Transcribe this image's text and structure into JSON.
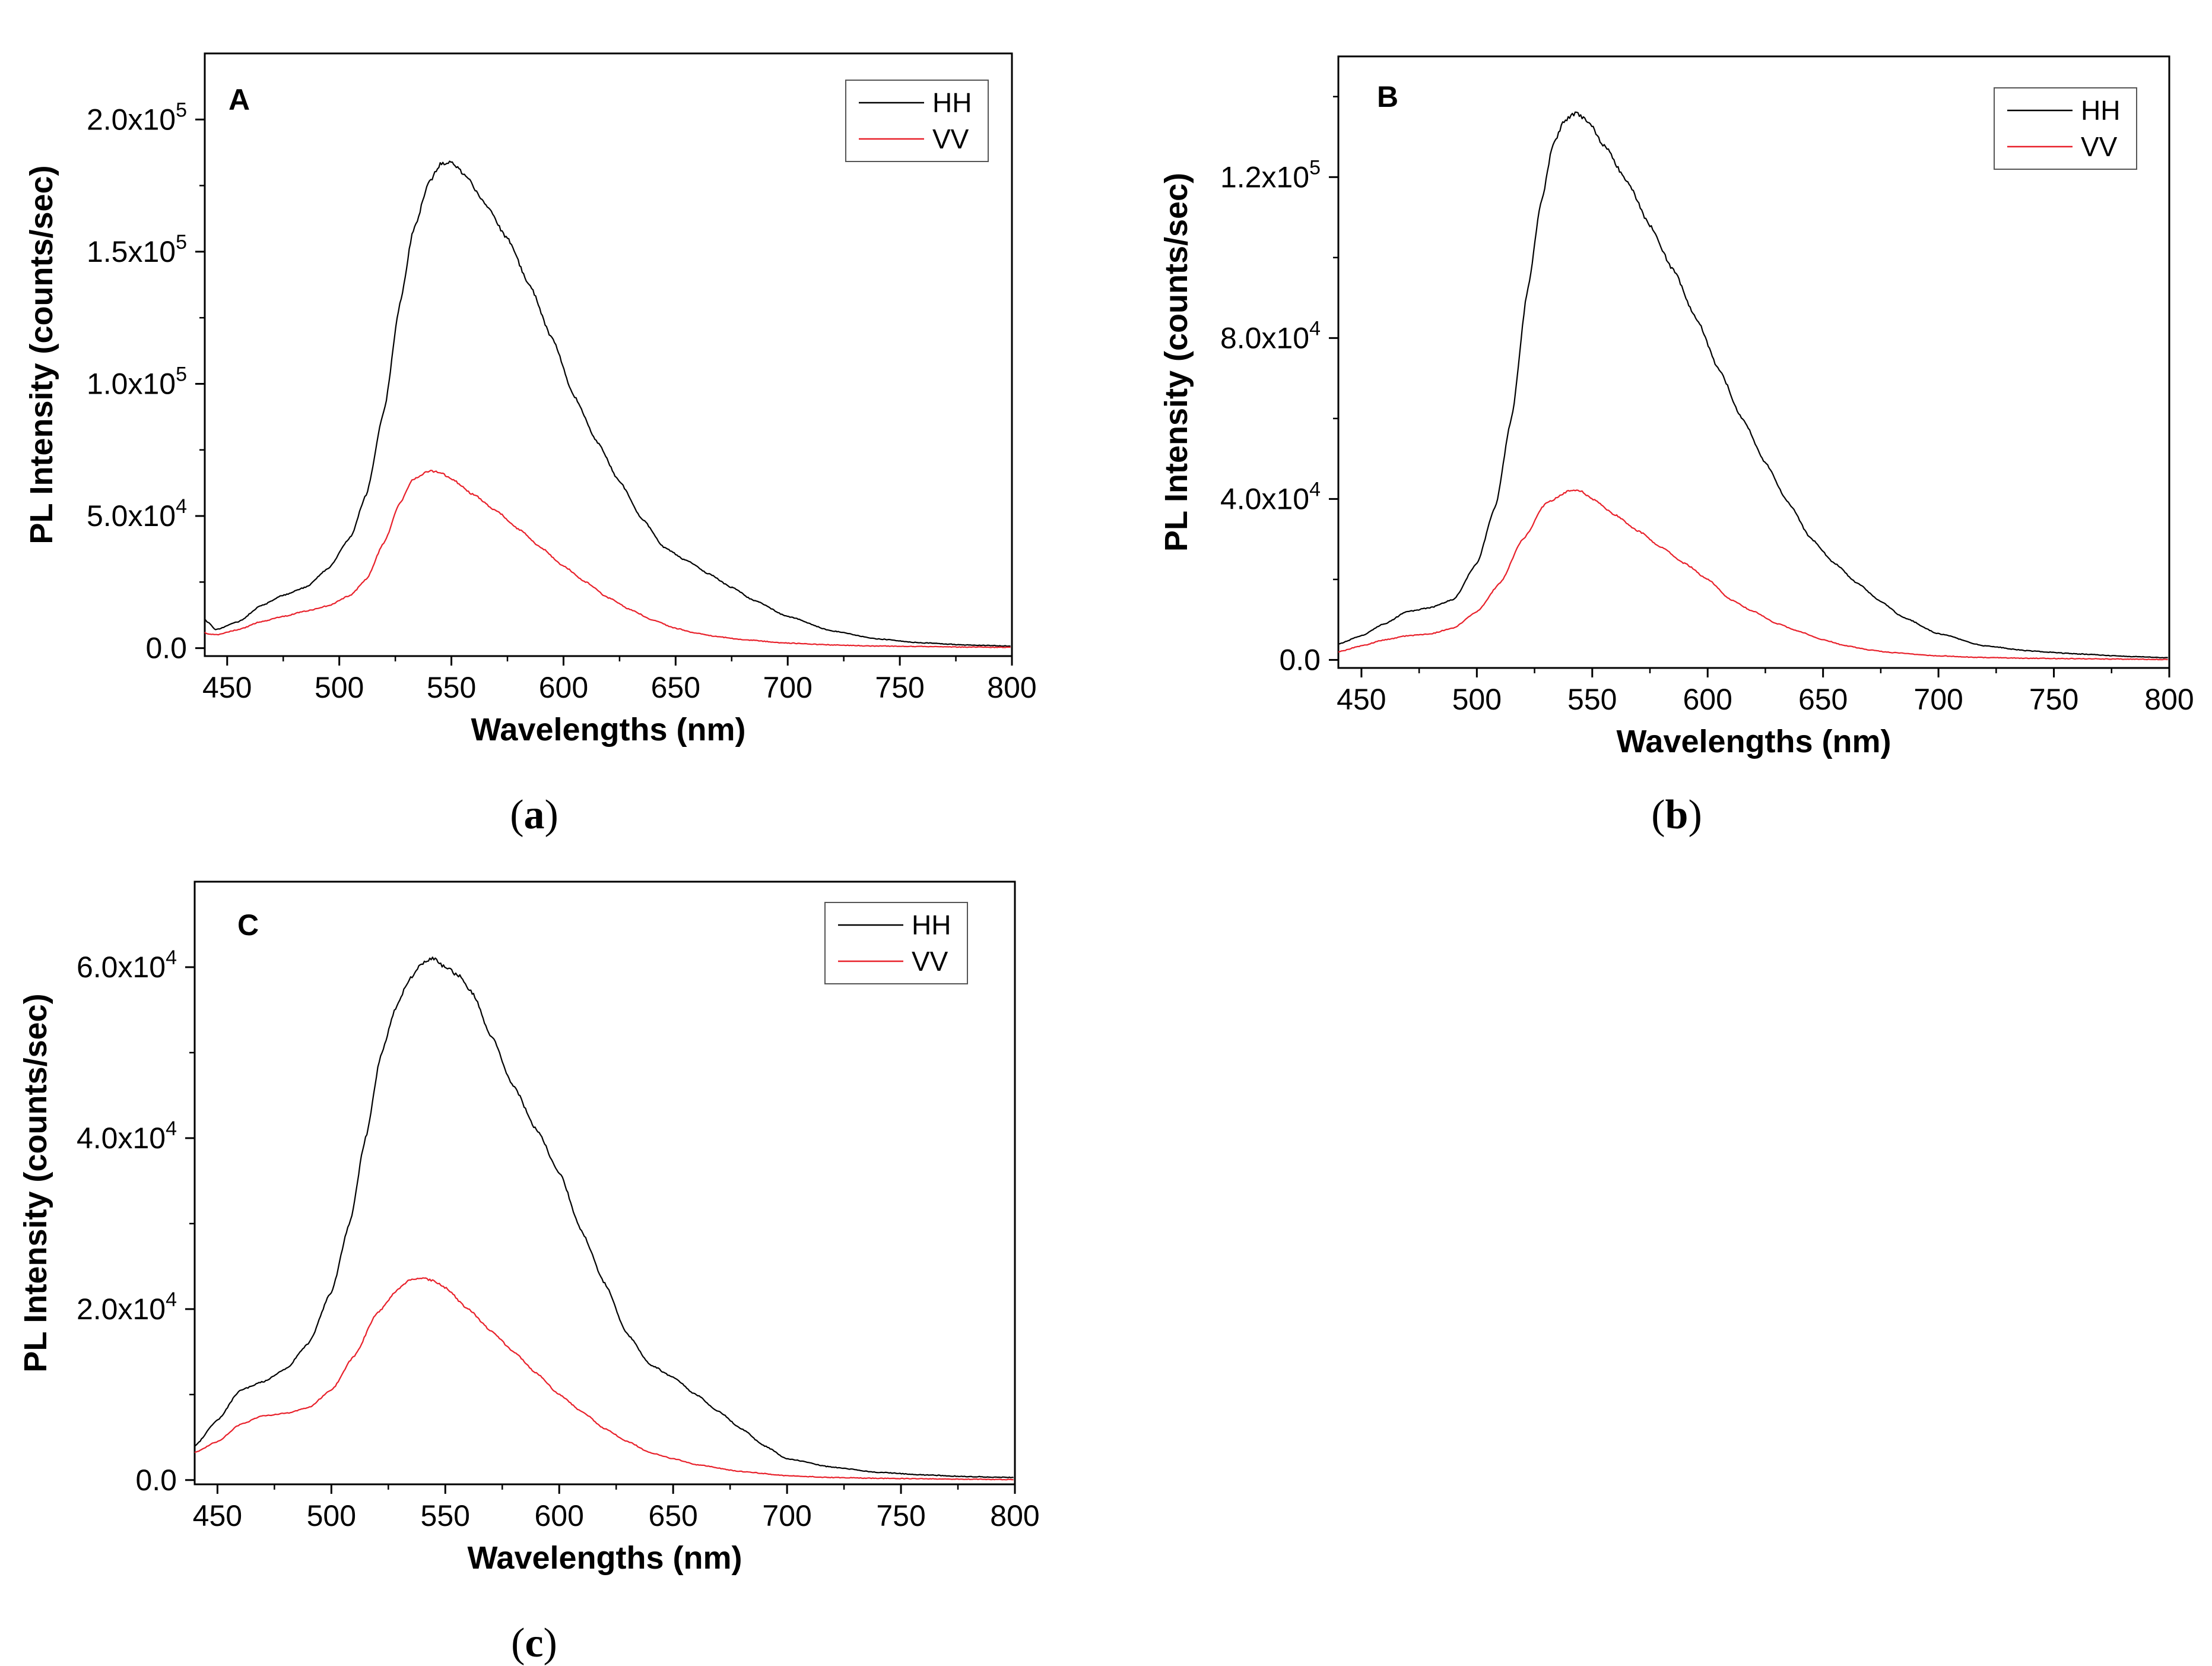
{
  "figure": {
    "colors": {
      "HH": "#000000",
      "VV": "#e8202a",
      "axis": "#000000"
    }
  },
  "chart_data": [
    {
      "type": "line",
      "panel_label": "A",
      "caption": "(a)",
      "caption_letter": "a",
      "xlabel": "Wavelengths (nm)",
      "ylabel": "PL Intensity (counts/sec)",
      "xlim": [
        440,
        800
      ],
      "ylim": [
        -3000,
        225000
      ],
      "xticks": [
        450,
        500,
        550,
        600,
        650,
        700,
        750,
        800
      ],
      "yticks": [
        {
          "value": 0,
          "mantissa": "0.0",
          "exp": ""
        },
        {
          "value": 50000,
          "mantissa": "5.0x10",
          "exp": "4"
        },
        {
          "value": 100000,
          "mantissa": "1.0x10",
          "exp": "5"
        },
        {
          "value": 150000,
          "mantissa": "1.5x10",
          "exp": "5"
        },
        {
          "value": 200000,
          "mantissa": "2.0x10",
          "exp": "5"
        }
      ],
      "legend": [
        "HH",
        "VV"
      ],
      "legend_position": "top-right",
      "series": [
        {
          "name": "HH",
          "x": [
            440,
            441,
            445,
            455,
            465,
            475,
            485,
            495,
            505,
            512,
            520,
            527,
            533,
            540,
            545,
            550,
            557,
            565,
            575,
            585,
            595,
            605,
            615,
            625,
            635,
            645,
            655,
            665,
            675,
            685,
            700,
            720,
            740,
            760,
            780,
            800
          ],
          "y": [
            11000,
            10000,
            7000,
            10000,
            16000,
            20000,
            23000,
            30000,
            42000,
            58000,
            90000,
            130000,
            158000,
            176000,
            183000,
            184000,
            178000,
            168000,
            155000,
            137000,
            117000,
            95000,
            78000,
            63000,
            49000,
            38000,
            33000,
            28000,
            23000,
            18000,
            12000,
            6500,
            3500,
            2000,
            1200,
            800
          ]
        },
        {
          "name": "VV",
          "x": [
            440,
            441,
            445,
            455,
            465,
            475,
            485,
            495,
            505,
            512,
            520,
            527,
            533,
            540,
            545,
            550,
            560,
            570,
            580,
            590,
            600,
            610,
            620,
            630,
            640,
            650,
            660,
            670,
            680,
            700,
            720,
            740,
            760,
            780,
            800
          ],
          "y": [
            6000,
            5500,
            5000,
            7000,
            10000,
            12000,
            14000,
            16000,
            20000,
            26000,
            40000,
            55000,
            64000,
            67000,
            66500,
            64000,
            58000,
            52000,
            45000,
            38000,
            31000,
            25000,
            19000,
            14500,
            10500,
            7500,
            5500,
            4200,
            3200,
            1900,
            1200,
            800,
            600,
            400,
            300
          ]
        }
      ]
    },
    {
      "type": "line",
      "panel_label": "B",
      "caption": "(b)",
      "caption_letter": "b",
      "xlabel": "Wavelengths (nm)",
      "ylabel": "PL Intensity (counts/sec)",
      "xlim": [
        440,
        800
      ],
      "ylim": [
        -2000,
        150000
      ],
      "xticks": [
        450,
        500,
        550,
        600,
        650,
        700,
        750,
        800
      ],
      "yticks": [
        {
          "value": 0,
          "mantissa": "0.0",
          "exp": ""
        },
        {
          "value": 40000,
          "mantissa": "4.0x10",
          "exp": "4"
        },
        {
          "value": 80000,
          "mantissa": "8.0x10",
          "exp": "4"
        },
        {
          "value": 120000,
          "mantissa": "1.2x10",
          "exp": "5"
        }
      ],
      "legend": [
        "HH",
        "VV"
      ],
      "legend_position": "top-right",
      "series": [
        {
          "name": "HH",
          "x": [
            440,
            450,
            460,
            470,
            480,
            490,
            500,
            508,
            515,
            522,
            528,
            533,
            538,
            543,
            548,
            555,
            565,
            575,
            585,
            595,
            605,
            615,
            625,
            635,
            645,
            655,
            665,
            675,
            685,
            700,
            720,
            740,
            760,
            780,
            800
          ],
          "y": [
            4000,
            6000,
            9000,
            12000,
            13000,
            15000,
            24000,
            38000,
            60000,
            92000,
            114000,
            128000,
            134000,
            136000,
            134000,
            128000,
            119000,
            108000,
            97000,
            85000,
            72000,
            60000,
            49000,
            39000,
            30000,
            24000,
            19000,
            14500,
            10500,
            6500,
            3500,
            2200,
            1500,
            900,
            500
          ]
        },
        {
          "name": "VV",
          "x": [
            440,
            450,
            460,
            470,
            480,
            490,
            500,
            510,
            520,
            530,
            540,
            545,
            550,
            560,
            570,
            580,
            590,
            600,
            610,
            620,
            630,
            640,
            650,
            660,
            670,
            680,
            700,
            720,
            740,
            760,
            780,
            800
          ],
          "y": [
            2000,
            3500,
            5000,
            6000,
            6500,
            8000,
            12000,
            19000,
            30000,
            39000,
            42000,
            42000,
            40000,
            36000,
            32000,
            28000,
            24000,
            20000,
            15000,
            12000,
            9000,
            7000,
            5000,
            3500,
            2500,
            1800,
            1000,
            600,
            400,
            300,
            200,
            100
          ]
        }
      ]
    },
    {
      "type": "line",
      "panel_label": "C",
      "caption": "(c)",
      "caption_letter": "c",
      "xlabel": "Wavelengths (nm)",
      "ylabel": "PL Intensity (counts/sec)",
      "xlim": [
        440,
        800
      ],
      "ylim": [
        -500,
        70000
      ],
      "xticks": [
        450,
        500,
        550,
        600,
        650,
        700,
        750,
        800
      ],
      "yticks": [
        {
          "value": 0,
          "mantissa": "0.0",
          "exp": ""
        },
        {
          "value": 20000,
          "mantissa": "2.0x10",
          "exp": "4"
        },
        {
          "value": 40000,
          "mantissa": "4.0x10",
          "exp": "4"
        },
        {
          "value": 60000,
          "mantissa": "6.0x10",
          "exp": "4"
        }
      ],
      "legend": [
        "HH",
        "VV"
      ],
      "legend_position": "top-right",
      "series": [
        {
          "name": "HH",
          "x": [
            440,
            450,
            460,
            470,
            480,
            490,
            500,
            508,
            515,
            522,
            528,
            534,
            540,
            545,
            550,
            556,
            562,
            570,
            580,
            590,
            600,
            610,
            620,
            630,
            640,
            650,
            660,
            670,
            680,
            690,
            700,
            720,
            740,
            760,
            780,
            800
          ],
          "y": [
            4000,
            7000,
            10500,
            11500,
            13000,
            16000,
            22000,
            30000,
            40000,
            50000,
            55000,
            58500,
            60500,
            61000,
            60000,
            59000,
            57000,
            52000,
            46000,
            41000,
            36000,
            29000,
            23000,
            17000,
            13500,
            12000,
            10000,
            8000,
            6000,
            4000,
            2500,
            1500,
            900,
            600,
            400,
            300
          ]
        },
        {
          "name": "VV",
          "x": [
            440,
            450,
            460,
            470,
            480,
            490,
            500,
            510,
            520,
            530,
            535,
            540,
            545,
            550,
            560,
            570,
            580,
            590,
            600,
            610,
            620,
            630,
            640,
            650,
            660,
            680,
            700,
            720,
            740,
            760,
            780,
            800
          ],
          "y": [
            3200,
            4500,
            6500,
            7500,
            7800,
            8500,
            10500,
            14500,
            19500,
            22500,
            23500,
            23600,
            23300,
            22500,
            20000,
            17500,
            15000,
            12500,
            10000,
            8000,
            6000,
            4500,
            3200,
            2500,
            1800,
            1000,
            500,
            300,
            200,
            150,
            100,
            50
          ]
        }
      ]
    }
  ]
}
